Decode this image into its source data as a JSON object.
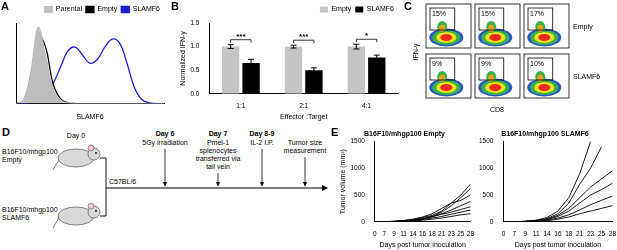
{
  "chart_data": [
    {
      "panel": "A",
      "type": "line",
      "x_label": "SLAMF6",
      "x": [
        0,
        1,
        2,
        3,
        4,
        5,
        6,
        7,
        8,
        9,
        10,
        11,
        12,
        13,
        14,
        15,
        16,
        17,
        18,
        19,
        20
      ],
      "xlim": [
        0,
        20
      ],
      "ylim": [
        0,
        100
      ],
      "tick_labels": false,
      "grid": false,
      "legend": "upper right",
      "series": [
        {
          "name": "Parental",
          "color": "#bdbdbd",
          "type": "area",
          "values": [
            0,
            5,
            40,
            95,
            60,
            20,
            5,
            1,
            0,
            0,
            0,
            0,
            0,
            0,
            0,
            0,
            0,
            0,
            0,
            0,
            0
          ]
        },
        {
          "name": "Empty",
          "color": "#000000",
          "values": [
            0,
            3,
            35,
            85,
            70,
            25,
            6,
            1,
            0,
            0,
            0,
            0,
            0,
            0,
            0,
            0,
            0,
            0,
            0,
            0,
            0
          ]
        },
        {
          "name": "SLAMF6",
          "color": "#1f1fd6",
          "values": [
            0,
            0,
            2,
            8,
            15,
            25,
            45,
            65,
            70,
            60,
            50,
            55,
            70,
            80,
            75,
            50,
            20,
            5,
            1,
            0,
            0
          ]
        }
      ]
    },
    {
      "panel": "B",
      "type": "bar",
      "y_label": "Normalized IFN-γ",
      "x_label": "Effector :Target",
      "categories": [
        "1:1",
        "2:1",
        "4:1"
      ],
      "ylim": [
        0,
        1.5
      ],
      "yticks": [
        {
          "value": 0,
          "label": "0.0"
        },
        {
          "value": 0.5,
          "label": "0.5"
        },
        {
          "value": 1,
          "label": "1.0"
        },
        {
          "value": 1.5,
          "label": "1.5"
        }
      ],
      "grid": false,
      "legend": "upper right",
      "annotations": [
        "***",
        "***",
        "*"
      ],
      "series": [
        {
          "name": "Empty",
          "color": "#c4c4c4",
          "values": [
            1.0,
            1.0,
            1.0
          ],
          "errors": [
            0.04,
            0.03,
            0.05
          ]
        },
        {
          "name": "SLAMF6",
          "color": "#000000",
          "values": [
            0.65,
            0.5,
            0.77
          ],
          "errors": [
            0.08,
            0.05,
            0.05
          ]
        }
      ]
    },
    {
      "panel": "E",
      "type": "line",
      "title": "B16F10/mhgp100 Empty",
      "y_label": "Tumor volume (mm³)",
      "x_label": "Days post tumor inoculation",
      "categories": [
        "0",
        "7",
        "9",
        "11",
        "14",
        "16",
        "18",
        "21",
        "23",
        "25",
        "28"
      ],
      "ylim": [
        0,
        1500
      ],
      "yticks": [
        0,
        500,
        1000,
        1500
      ],
      "grid": false,
      "color": "#000000",
      "series": [
        {
          "values": [
            0,
            0,
            10,
            20,
            40,
            80,
            120,
            200,
            350,
            500,
            700
          ]
        },
        {
          "values": [
            0,
            0,
            5,
            15,
            30,
            60,
            100,
            180,
            300,
            450,
            620
          ]
        },
        {
          "values": [
            0,
            0,
            10,
            25,
            50,
            90,
            150,
            250,
            350,
            400,
            500
          ]
        },
        {
          "values": [
            0,
            0,
            5,
            10,
            25,
            50,
            90,
            150,
            220,
            300,
            380
          ]
        },
        {
          "values": [
            0,
            0,
            5,
            15,
            30,
            60,
            100,
            140,
            180,
            230,
            280
          ]
        },
        {
          "values": [
            0,
            0,
            5,
            10,
            20,
            40,
            70,
            100,
            140,
            180,
            220
          ]
        },
        {
          "values": [
            0,
            0,
            0,
            5,
            15,
            30,
            50,
            70,
            100,
            130,
            150
          ]
        }
      ]
    },
    {
      "type": "line",
      "title": "B16F10/mhgp100 SLAMF6",
      "x_label": "Days post tumor inoculation",
      "categories": [
        "0",
        "7",
        "9",
        "11",
        "14",
        "16",
        "18",
        "21",
        "23",
        "25",
        "28"
      ],
      "ylim": [
        0,
        1500
      ],
      "yticks": [
        0,
        500,
        1000,
        1500
      ],
      "grid": false,
      "color": "#000000",
      "series": [
        {
          "values": [
            0,
            0,
            10,
            30,
            80,
            200,
            450,
            900,
            1500,
            null,
            null
          ]
        },
        {
          "values": [
            0,
            0,
            10,
            25,
            60,
            150,
            350,
            700,
            1000,
            1400,
            null
          ]
        },
        {
          "values": [
            0,
            0,
            5,
            20,
            50,
            120,
            250,
            450,
            650,
            800,
            950
          ]
        },
        {
          "values": [
            0,
            0,
            5,
            15,
            40,
            100,
            200,
            350,
            500,
            600,
            720
          ]
        },
        {
          "values": [
            0,
            0,
            5,
            15,
            30,
            70,
            130,
            220,
            320,
            400,
            480
          ]
        },
        {
          "values": [
            0,
            0,
            0,
            10,
            20,
            50,
            90,
            150,
            200,
            250,
            300
          ]
        }
      ]
    }
  ],
  "flow_plots": {
    "panel": "C",
    "x_label": "CD8",
    "y_label": "IFN-γ",
    "rows": [
      {
        "name": "Empty",
        "gates": [
          "15%",
          "15%",
          "17%"
        ]
      },
      {
        "name": "SLAMF6",
        "gates": [
          "9%",
          "9%",
          "10%"
        ]
      }
    ]
  },
  "diagram": {
    "panel": "D",
    "start": "Day 0",
    "strain": "C57BL/6",
    "groups": [
      [
        "B16F10/mhgp100",
        "Empty"
      ],
      [
        "B16F10/mhgp100",
        "SLAMF6"
      ]
    ],
    "steps": [
      {
        "day": "Day 6",
        "event": [
          "5Gy irradiation"
        ]
      },
      {
        "day": "Day 7",
        "event": [
          "Pmel-1",
          "splenocytes",
          "transferred via",
          "tail vein"
        ]
      },
      {
        "day": "Day 8-9",
        "event": [
          "IL-2 I.P."
        ]
      },
      {
        "event": [
          "Tumor size",
          "measurement"
        ]
      }
    ]
  }
}
